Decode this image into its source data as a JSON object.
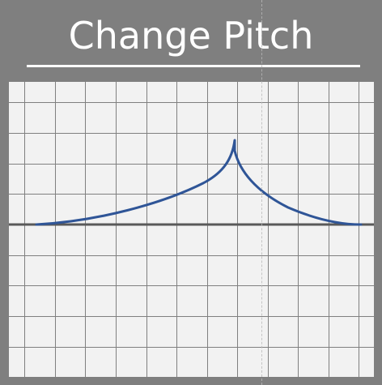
{
  "title": "Change Pitch",
  "colors": {
    "frame": "#7f7f7f",
    "grid_background": "#f2f2f2",
    "grid_lines": "#808080",
    "baseline": "#595959",
    "curve": "#2f5597",
    "title_text": "#ffffff"
  },
  "graphic": {
    "type": "pitch-envelope",
    "shape": "cusp peak",
    "grid": true
  }
}
